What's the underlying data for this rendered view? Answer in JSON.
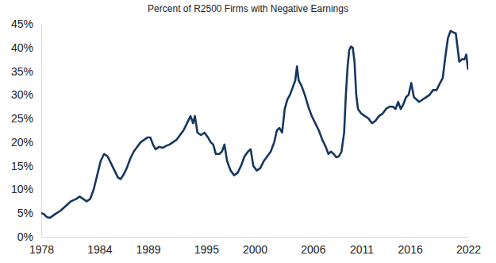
{
  "chart_data": {
    "type": "line",
    "title": "Percent of R2500 Firms with Negative Earnings",
    "color": "#17375e",
    "grid": false,
    "x": [
      1978.0,
      1978.27,
      1978.54,
      1978.9,
      1979.44,
      1979.98,
      1980.52,
      1981.06,
      1981.6,
      1981.96,
      1982.32,
      1982.68,
      1983.04,
      1983.4,
      1983.76,
      1984.12,
      1984.47,
      1984.83,
      1985.19,
      1985.55,
      1985.91,
      1986.18,
      1986.45,
      1986.81,
      1987.17,
      1987.53,
      1987.89,
      1988.25,
      1988.61,
      1988.97,
      1989.24,
      1989.51,
      1989.78,
      1990.14,
      1990.5,
      1990.86,
      1991.22,
      1991.58,
      1991.94,
      1992.3,
      1992.66,
      1993.02,
      1993.38,
      1993.65,
      1993.83,
      1994.1,
      1994.46,
      1994.82,
      1995.18,
      1995.45,
      1995.72,
      1995.99,
      1996.35,
      1996.62,
      1996.88,
      1997.15,
      1997.51,
      1997.87,
      1998.23,
      1998.59,
      1998.95,
      1999.31,
      1999.58,
      1999.85,
      2000.21,
      2000.57,
      2000.93,
      2001.29,
      2001.65,
      2002.01,
      2002.28,
      2002.55,
      2002.82,
      2003.09,
      2003.36,
      2003.63,
      2003.9,
      2004.17,
      2004.35,
      2004.53,
      2004.8,
      2005.16,
      2005.52,
      2005.88,
      2006.24,
      2006.6,
      2006.96,
      2007.32,
      2007.59,
      2007.86,
      2008.13,
      2008.4,
      2008.67,
      2008.94,
      2009.21,
      2009.39,
      2009.57,
      2009.74,
      2009.92,
      2010.1,
      2010.28,
      2010.46,
      2010.64,
      2011.0,
      2011.36,
      2011.72,
      2012.08,
      2012.44,
      2012.8,
      2013.16,
      2013.52,
      2013.88,
      2014.24,
      2014.51,
      2014.78,
      2015.05,
      2015.32,
      2015.59,
      2015.86,
      2016.13,
      2016.4,
      2016.67,
      2016.94,
      2017.3,
      2017.66,
      2018.02,
      2018.38,
      2018.74,
      2019.1,
      2019.37,
      2019.64,
      2019.91,
      2020.18,
      2020.45,
      2020.72,
      2020.9,
      2021.08,
      2021.35,
      2021.62,
      2021.8,
      2021.97
    ],
    "values": [
      5.0,
      4.8,
      4.2,
      4.0,
      4.8,
      5.5,
      6.5,
      7.5,
      8.0,
      8.5,
      8.0,
      7.5,
      8.0,
      10.0,
      13.0,
      16.0,
      17.5,
      17.0,
      15.5,
      14.0,
      12.5,
      12.2,
      13.0,
      14.5,
      16.5,
      18.0,
      19.0,
      20.0,
      20.5,
      21.0,
      21.0,
      19.5,
      18.5,
      19.0,
      18.8,
      19.2,
      19.5,
      20.0,
      20.5,
      21.5,
      22.5,
      24.0,
      25.5,
      24.0,
      25.5,
      22.0,
      21.5,
      22.0,
      21.0,
      20.0,
      19.5,
      17.5,
      17.5,
      18.0,
      19.5,
      16.0,
      14.0,
      13.0,
      13.5,
      15.0,
      17.0,
      18.0,
      18.5,
      15.0,
      14.0,
      14.5,
      16.0,
      17.0,
      18.0,
      20.0,
      22.5,
      23.0,
      22.0,
      27.0,
      29.0,
      30.0,
      31.5,
      33.0,
      36.0,
      33.0,
      32.0,
      30.0,
      27.5,
      25.5,
      24.0,
      22.5,
      20.5,
      19.0,
      17.5,
      18.0,
      17.5,
      16.8,
      17.0,
      18.0,
      22.0,
      30.0,
      36.0,
      39.5,
      40.2,
      40.0,
      37.0,
      30.0,
      27.0,
      26.0,
      25.5,
      25.0,
      24.0,
      24.5,
      25.5,
      26.0,
      27.0,
      27.5,
      27.5,
      27.0,
      28.5,
      27.0,
      28.0,
      29.5,
      30.0,
      32.5,
      29.5,
      29.0,
      28.5,
      29.0,
      29.5,
      30.0,
      31.0,
      31.0,
      32.5,
      33.5,
      38.0,
      42.0,
      43.5,
      43.2,
      43.0,
      40.0,
      37.0,
      37.5,
      37.5,
      38.5,
      35.5
    ],
    "xlim": [
      1978,
      2022
    ],
    "xticks": [
      1978,
      1984,
      1989,
      1995,
      2000,
      2006,
      2011,
      2016,
      2022
    ],
    "ylim": [
      0,
      45
    ],
    "yticks": [
      {
        "value": 0,
        "label": "0%"
      },
      {
        "value": 5,
        "label": "5%"
      },
      {
        "value": 10,
        "label": "10%"
      },
      {
        "value": 15,
        "label": "15%"
      },
      {
        "value": 20,
        "label": "20%"
      },
      {
        "value": 25,
        "label": "25%"
      },
      {
        "value": 30,
        "label": "30%"
      },
      {
        "value": 35,
        "label": "35%"
      },
      {
        "value": 40,
        "label": "40%"
      },
      {
        "value": 45,
        "label": "45%"
      }
    ]
  }
}
